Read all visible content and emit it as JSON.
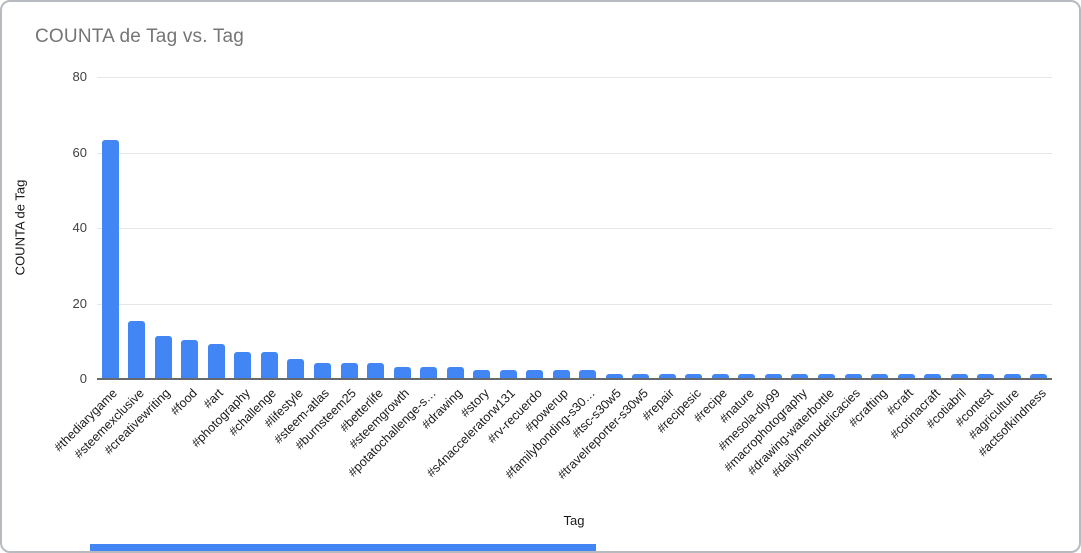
{
  "chart_data": {
    "type": "bar",
    "title": "COUNTA de Tag vs. Tag",
    "xlabel": "Tag",
    "ylabel": "COUNTA de Tag",
    "ylim": [
      0,
      80
    ],
    "yticks": [
      0,
      20,
      40,
      60,
      80
    ],
    "grid": true,
    "legend": "none",
    "bar_color": "#4285f4",
    "categories": [
      "#thediarygame",
      "#steemexclusive",
      "#creativewriting",
      "#food",
      "#art",
      "#photography",
      "#challenge",
      "#lifestyle",
      "#steem-atlas",
      "#burnsteem25",
      "#betterlife",
      "#steemgrowth",
      "#potatochallenge-s…",
      "#drawing",
      "#story",
      "#s4nacceleratorw131",
      "#rv-recuerdo",
      "#powerup",
      "#familybonding-s30…",
      "#tsc-s30w5",
      "#travelreporter-s30w5",
      "#repair",
      "#recipesic",
      "#recipe",
      "#nature",
      "#mesola-diy99",
      "#macrophotography",
      "#drawing-waterbottle",
      "#dailymenudelicacies",
      "#crafting",
      "#craft",
      "#cotinacraft",
      "#cotiabril",
      "#contest",
      "#agriculture",
      "#actsofkindness"
    ],
    "values": [
      63,
      15,
      11,
      10,
      9,
      7,
      7,
      5,
      4,
      4,
      4,
      3,
      3,
      3,
      2,
      2,
      2,
      2,
      2,
      1,
      1,
      1,
      1,
      1,
      1,
      1,
      1,
      1,
      1,
      1,
      1,
      1,
      1,
      1,
      1,
      1
    ]
  }
}
